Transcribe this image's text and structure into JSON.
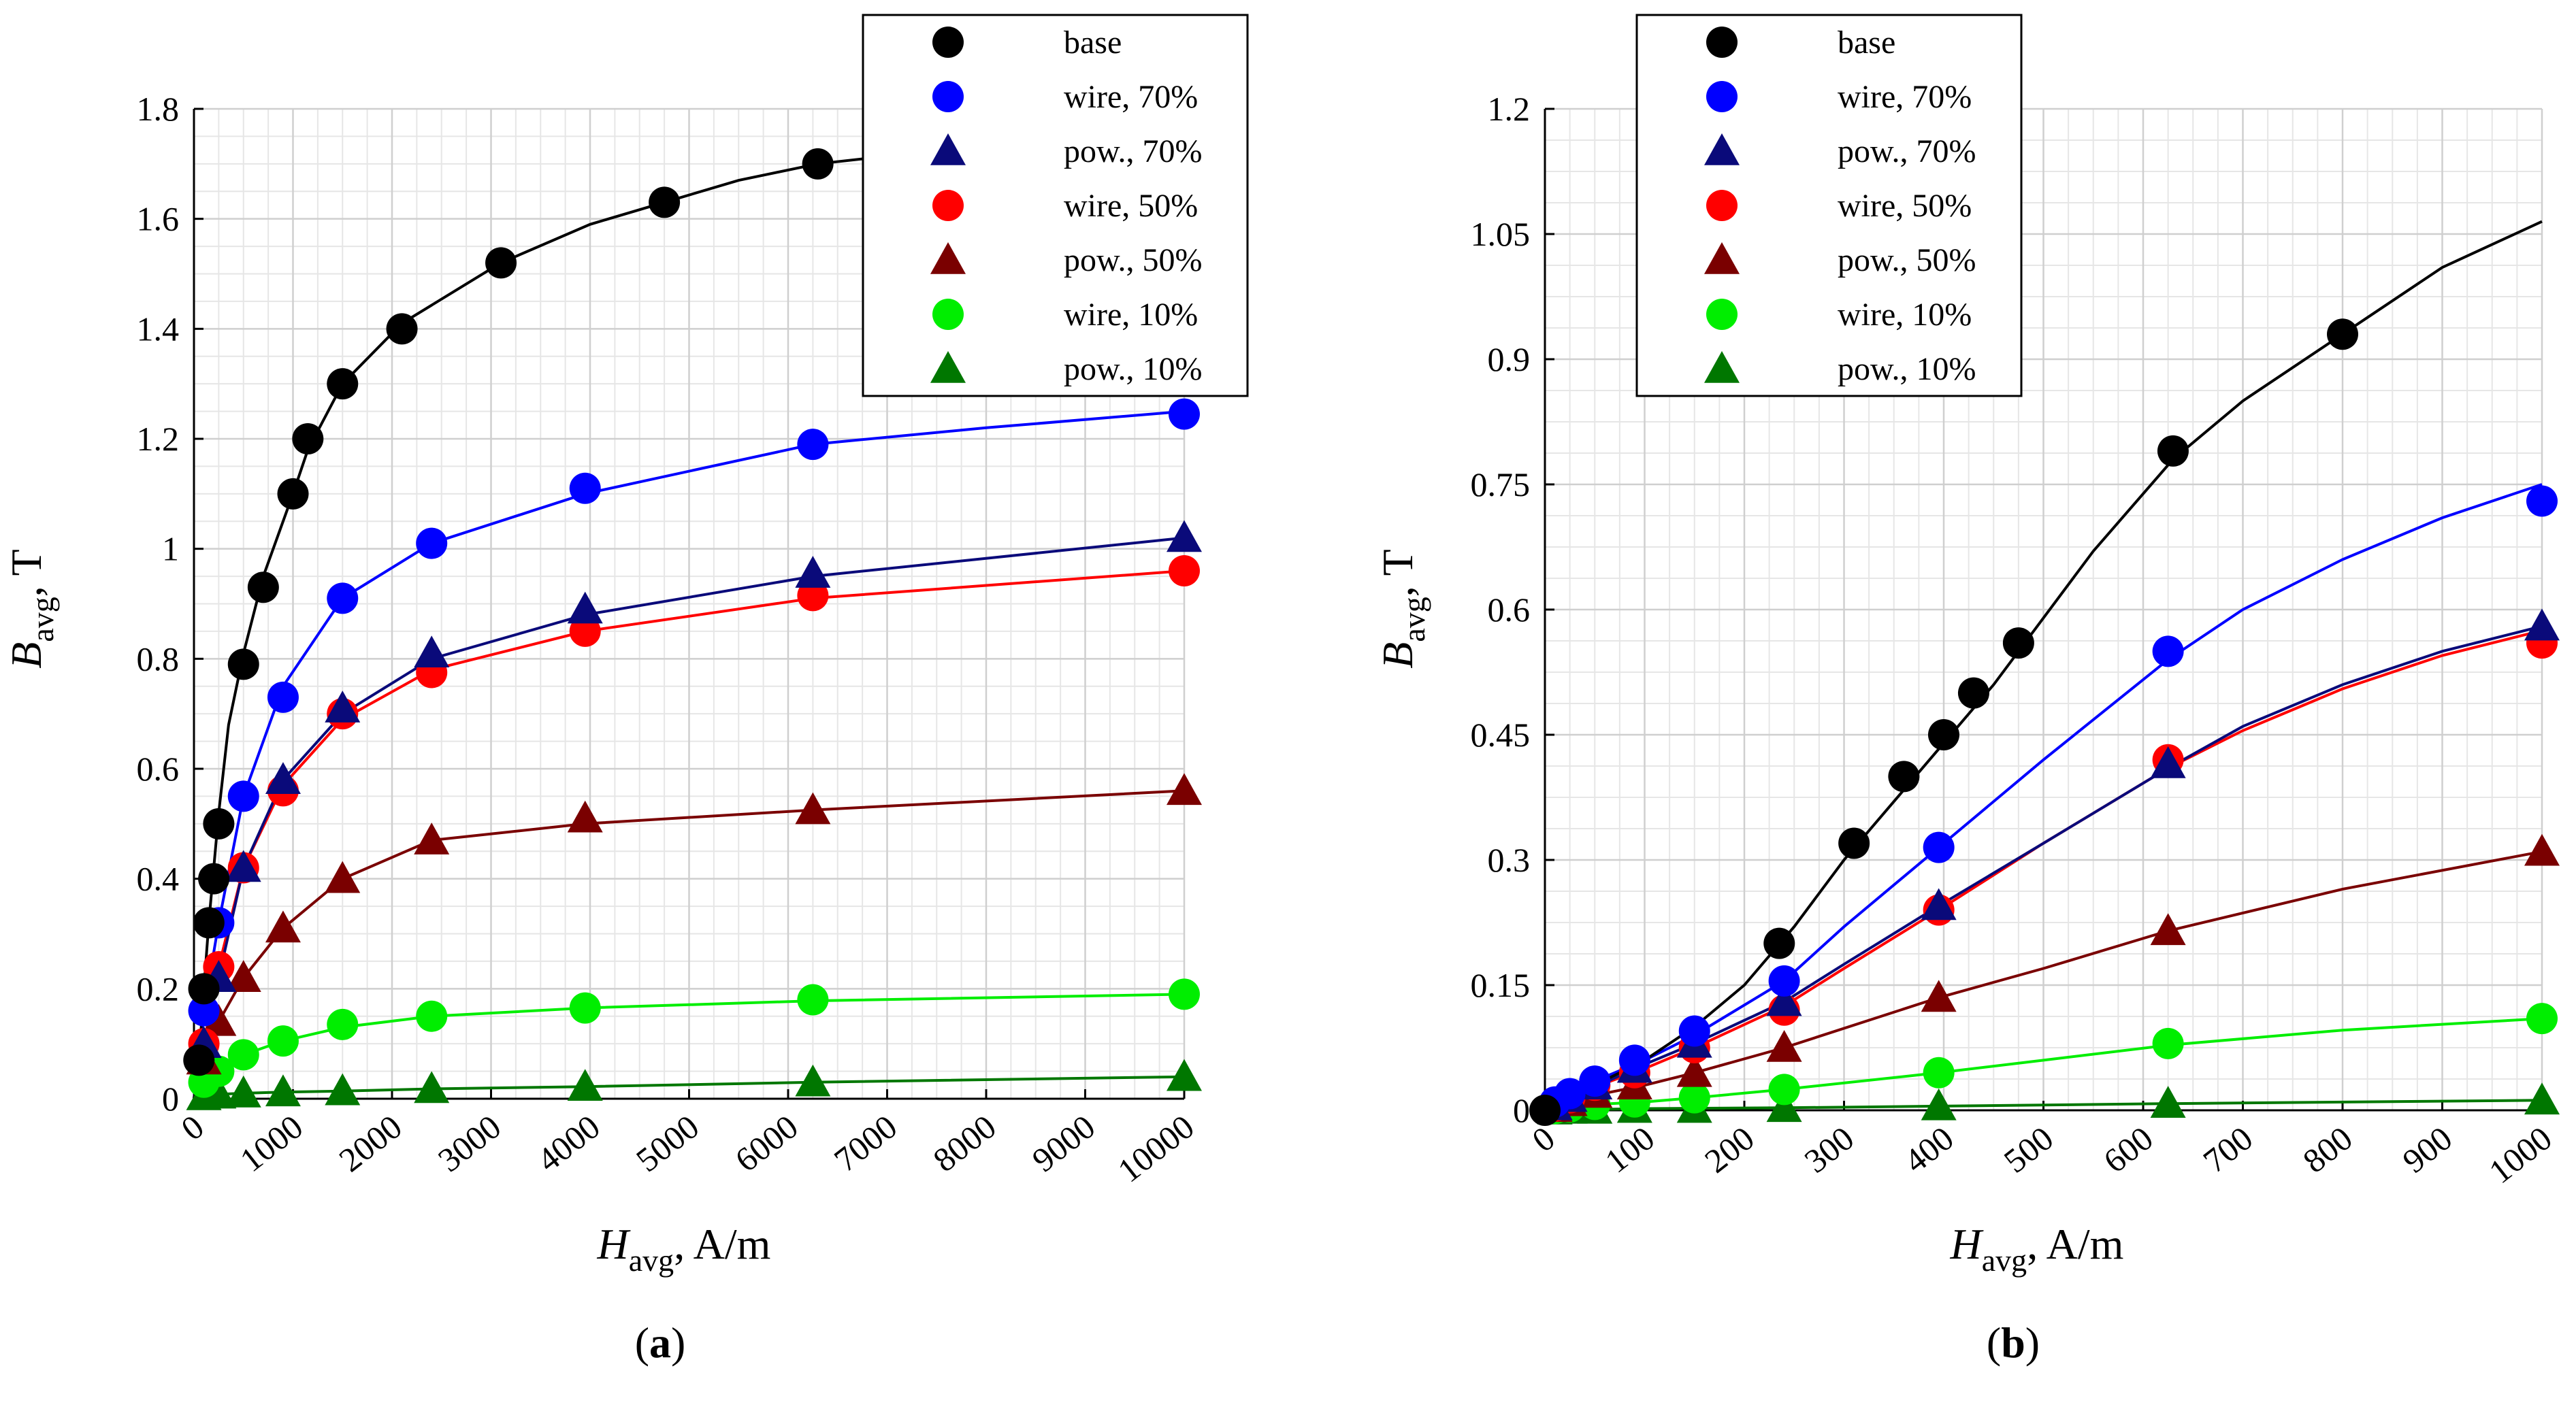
{
  "chart_data": [
    {
      "id": "a",
      "type": "scatter",
      "caption": "a",
      "xlabel": {
        "main": "H",
        "sub": "avg",
        "rest": ", A/m"
      },
      "ylabel": {
        "main": "B",
        "sub": "avg",
        "rest": ", T"
      },
      "xlim": [
        0,
        10000
      ],
      "ylim": [
        0,
        1.8
      ],
      "xticks": [
        0,
        1000,
        2000,
        3000,
        4000,
        5000,
        6000,
        7000,
        8000,
        9000,
        10000
      ],
      "yticks": [
        0,
        0.2,
        0.4,
        0.6,
        0.8,
        1,
        1.2,
        1.4,
        1.6,
        1.8
      ],
      "ytick_labels": [
        "0",
        "0.2",
        "0.4",
        "0.6",
        "0.8",
        "1",
        "1.2",
        "1.4",
        "1.6",
        "1.8"
      ],
      "minor_x_step": 250,
      "minor_y_step": 0.05,
      "grid": true,
      "legend_position": "top-right",
      "series": [
        {
          "name": "base",
          "marker": "circle",
          "color": "#000000",
          "x": [
            50,
            100,
            150,
            200,
            250,
            500,
            700,
            1000,
            1150,
            1500,
            2100,
            3100,
            4750,
            6300
          ],
          "y": [
            0.07,
            0.2,
            0.32,
            0.4,
            0.5,
            0.79,
            0.93,
            1.1,
            1.2,
            1.3,
            1.4,
            1.52,
            1.63,
            1.7
          ],
          "curve_x": [
            0,
            50,
            100,
            150,
            200,
            250,
            350,
            500,
            700,
            1000,
            1150,
            1500,
            2100,
            3100,
            4000,
            4750,
            5500,
            6300,
            6800
          ],
          "curve_y": [
            0,
            0.07,
            0.2,
            0.32,
            0.42,
            0.52,
            0.68,
            0.81,
            0.95,
            1.1,
            1.18,
            1.3,
            1.41,
            1.52,
            1.59,
            1.63,
            1.67,
            1.7,
            1.71
          ]
        },
        {
          "name": "wire, 70%",
          "marker": "circle",
          "color": "#0000ff",
          "x": [
            100,
            250,
            500,
            900,
            1500,
            2400,
            3950,
            6250,
            10000
          ],
          "y": [
            0.16,
            0.32,
            0.55,
            0.73,
            0.91,
            1.01,
            1.11,
            1.19,
            1.245
          ],
          "curve_x": [
            0,
            100,
            250,
            500,
            900,
            1500,
            2400,
            3950,
            6250,
            8000,
            10000
          ],
          "curve_y": [
            0,
            0.16,
            0.32,
            0.55,
            0.75,
            0.91,
            1.01,
            1.1,
            1.19,
            1.22,
            1.25
          ]
        },
        {
          "name": "pow., 70%",
          "marker": "triangle",
          "color": "#0a0a7a",
          "x": [
            100,
            250,
            500,
            900,
            1500,
            2400,
            3950,
            6250,
            10000
          ],
          "y": [
            0.1,
            0.22,
            0.42,
            0.58,
            0.71,
            0.81,
            0.89,
            0.955,
            1.02
          ],
          "curve_x": [
            0,
            100,
            250,
            500,
            900,
            1500,
            2400,
            3950,
            6250,
            10000
          ],
          "curve_y": [
            0,
            0.1,
            0.22,
            0.42,
            0.58,
            0.7,
            0.8,
            0.88,
            0.95,
            1.02
          ]
        },
        {
          "name": "wire, 50%",
          "marker": "circle",
          "color": "#ff0000",
          "x": [
            100,
            250,
            500,
            900,
            1500,
            2400,
            3950,
            6250,
            10000
          ],
          "y": [
            0.1,
            0.24,
            0.42,
            0.56,
            0.7,
            0.775,
            0.85,
            0.915,
            0.96
          ],
          "curve_x": [
            0,
            100,
            250,
            500,
            900,
            1500,
            2400,
            3950,
            6250,
            10000
          ],
          "curve_y": [
            0,
            0.1,
            0.24,
            0.42,
            0.57,
            0.69,
            0.78,
            0.85,
            0.91,
            0.96
          ]
        },
        {
          "name": "pow., 50%",
          "marker": "triangle",
          "color": "#7a0000",
          "x": [
            100,
            250,
            500,
            900,
            1500,
            2400,
            3950,
            6250,
            10000
          ],
          "y": [
            0.07,
            0.14,
            0.22,
            0.31,
            0.4,
            0.47,
            0.51,
            0.525,
            0.56
          ],
          "curve_x": [
            0,
            100,
            250,
            500,
            900,
            1500,
            2400,
            3950,
            6250,
            10000
          ],
          "curve_y": [
            0,
            0.07,
            0.14,
            0.22,
            0.31,
            0.4,
            0.47,
            0.5,
            0.525,
            0.56
          ]
        },
        {
          "name": "wire, 10%",
          "marker": "circle",
          "color": "#00ee00",
          "x": [
            100,
            250,
            500,
            900,
            1500,
            2400,
            3950,
            6250,
            10000
          ],
          "y": [
            0.03,
            0.05,
            0.08,
            0.105,
            0.135,
            0.15,
            0.165,
            0.18,
            0.19
          ],
          "curve_x": [
            0,
            100,
            250,
            500,
            900,
            1500,
            2400,
            3950,
            6250,
            10000
          ],
          "curve_y": [
            0,
            0.03,
            0.05,
            0.08,
            0.105,
            0.13,
            0.15,
            0.165,
            0.178,
            0.19
          ]
        },
        {
          "name": "pow., 10%",
          "marker": "triangle",
          "color": "#007700",
          "x": [
            100,
            250,
            500,
            900,
            1500,
            2400,
            3950,
            6250,
            10000
          ],
          "y": [
            0.005,
            0.008,
            0.01,
            0.012,
            0.014,
            0.018,
            0.022,
            0.03,
            0.04
          ],
          "curve_x": [
            0,
            100,
            250,
            500,
            900,
            1500,
            2400,
            3950,
            6250,
            10000
          ],
          "curve_y": [
            0,
            0.005,
            0.008,
            0.01,
            0.012,
            0.014,
            0.018,
            0.022,
            0.03,
            0.04
          ]
        }
      ]
    },
    {
      "id": "b",
      "type": "scatter",
      "caption": "b",
      "xlabel": {
        "main": "H",
        "sub": "avg",
        "rest": ", A/m"
      },
      "ylabel": {
        "main": "B",
        "sub": "avg",
        "rest": ", T"
      },
      "xlim": [
        0,
        1000
      ],
      "ylim": [
        0,
        1.2
      ],
      "xticks": [
        0,
        100,
        200,
        300,
        400,
        500,
        600,
        700,
        800,
        900,
        1000
      ],
      "yticks": [
        0,
        0.15,
        0.3,
        0.45,
        0.6,
        0.75,
        0.9,
        1.05,
        1.2
      ],
      "ytick_labels": [
        "0",
        "0.15",
        "0.3",
        "0.45",
        "0.6",
        "0.75",
        "0.9",
        "1.05",
        "1.2"
      ],
      "minor_x_step": 25,
      "minor_y_step": 0.0375,
      "grid": true,
      "legend_position": "top-left",
      "series": [
        {
          "name": "base",
          "marker": "circle",
          "color": "#000000",
          "x": [
            0,
            235,
            310,
            360,
            400,
            430,
            475,
            630,
            800
          ],
          "y": [
            0,
            0.2,
            0.32,
            0.4,
            0.45,
            0.5,
            0.56,
            0.79,
            0.93
          ],
          "curve_x": [
            0,
            100,
            150,
            200,
            250,
            300,
            350,
            400,
            450,
            500,
            550,
            630,
            700,
            800,
            900,
            1000
          ],
          "curve_y": [
            0,
            0.06,
            0.1,
            0.15,
            0.22,
            0.3,
            0.37,
            0.44,
            0.51,
            0.59,
            0.67,
            0.78,
            0.85,
            0.93,
            1.01,
            1.065
          ]
        },
        {
          "name": "wire, 70%",
          "marker": "circle",
          "color": "#0000ff",
          "x": [
            10,
            25,
            50,
            90,
            150,
            240,
            395,
            625,
            1000
          ],
          "y": [
            0.01,
            0.02,
            0.035,
            0.06,
            0.095,
            0.155,
            0.315,
            0.55,
            0.73
          ],
          "curve_x": [
            0,
            50,
            100,
            150,
            240,
            300,
            395,
            500,
            625,
            700,
            800,
            900,
            1000
          ],
          "curve_y": [
            0,
            0.035,
            0.06,
            0.09,
            0.155,
            0.22,
            0.315,
            0.42,
            0.54,
            0.6,
            0.66,
            0.71,
            0.75
          ]
        },
        {
          "name": "pow., 70%",
          "marker": "triangle",
          "color": "#0a0a7a",
          "x": [
            10,
            25,
            50,
            90,
            150,
            240,
            395,
            625,
            1000
          ],
          "y": [
            0.005,
            0.015,
            0.03,
            0.05,
            0.08,
            0.13,
            0.245,
            0.415,
            0.58
          ],
          "curve_x": [
            0,
            50,
            100,
            150,
            240,
            300,
            395,
            500,
            625,
            700,
            800,
            900,
            1000
          ],
          "curve_y": [
            0,
            0.028,
            0.055,
            0.08,
            0.13,
            0.175,
            0.245,
            0.32,
            0.41,
            0.46,
            0.51,
            0.55,
            0.58
          ]
        },
        {
          "name": "wire, 50%",
          "marker": "circle",
          "color": "#ff0000",
          "x": [
            10,
            25,
            50,
            90,
            150,
            240,
            395,
            625,
            1000
          ],
          "y": [
            0.005,
            0.015,
            0.03,
            0.045,
            0.075,
            0.12,
            0.24,
            0.42,
            0.56
          ],
          "curve_x": [
            0,
            50,
            100,
            150,
            240,
            300,
            395,
            500,
            625,
            700,
            800,
            900,
            1000
          ],
          "curve_y": [
            0,
            0.028,
            0.05,
            0.075,
            0.125,
            0.17,
            0.24,
            0.32,
            0.41,
            0.455,
            0.505,
            0.545,
            0.575
          ]
        },
        {
          "name": "pow., 50%",
          "marker": "triangle",
          "color": "#7a0000",
          "x": [
            10,
            25,
            50,
            90,
            150,
            240,
            395,
            625,
            1000
          ],
          "y": [
            0.003,
            0.01,
            0.02,
            0.03,
            0.045,
            0.075,
            0.135,
            0.215,
            0.31
          ],
          "curve_x": [
            0,
            50,
            100,
            150,
            240,
            395,
            500,
            625,
            800,
            1000
          ],
          "curve_y": [
            0,
            0.018,
            0.03,
            0.045,
            0.075,
            0.135,
            0.17,
            0.215,
            0.265,
            0.31
          ]
        },
        {
          "name": "wire, 10%",
          "marker": "circle",
          "color": "#00ee00",
          "x": [
            10,
            25,
            50,
            90,
            150,
            240,
            395,
            625,
            1000
          ],
          "y": [
            0.002,
            0.004,
            0.007,
            0.01,
            0.015,
            0.025,
            0.045,
            0.08,
            0.11
          ],
          "curve_x": [
            0,
            50,
            100,
            150,
            240,
            395,
            500,
            625,
            800,
            1000
          ],
          "curve_y": [
            0,
            0.007,
            0.01,
            0.015,
            0.025,
            0.045,
            0.06,
            0.078,
            0.096,
            0.11
          ]
        },
        {
          "name": "pow., 10%",
          "marker": "triangle",
          "color": "#007700",
          "x": [
            10,
            25,
            50,
            90,
            150,
            240,
            395,
            625,
            1000
          ],
          "y": [
            0.0,
            0.001,
            0.001,
            0.002,
            0.002,
            0.003,
            0.005,
            0.008,
            0.012
          ],
          "curve_x": [
            0,
            100,
            240,
            395,
            625,
            1000
          ],
          "curve_y": [
            0,
            0.002,
            0.003,
            0.005,
            0.008,
            0.012
          ]
        }
      ]
    }
  ]
}
